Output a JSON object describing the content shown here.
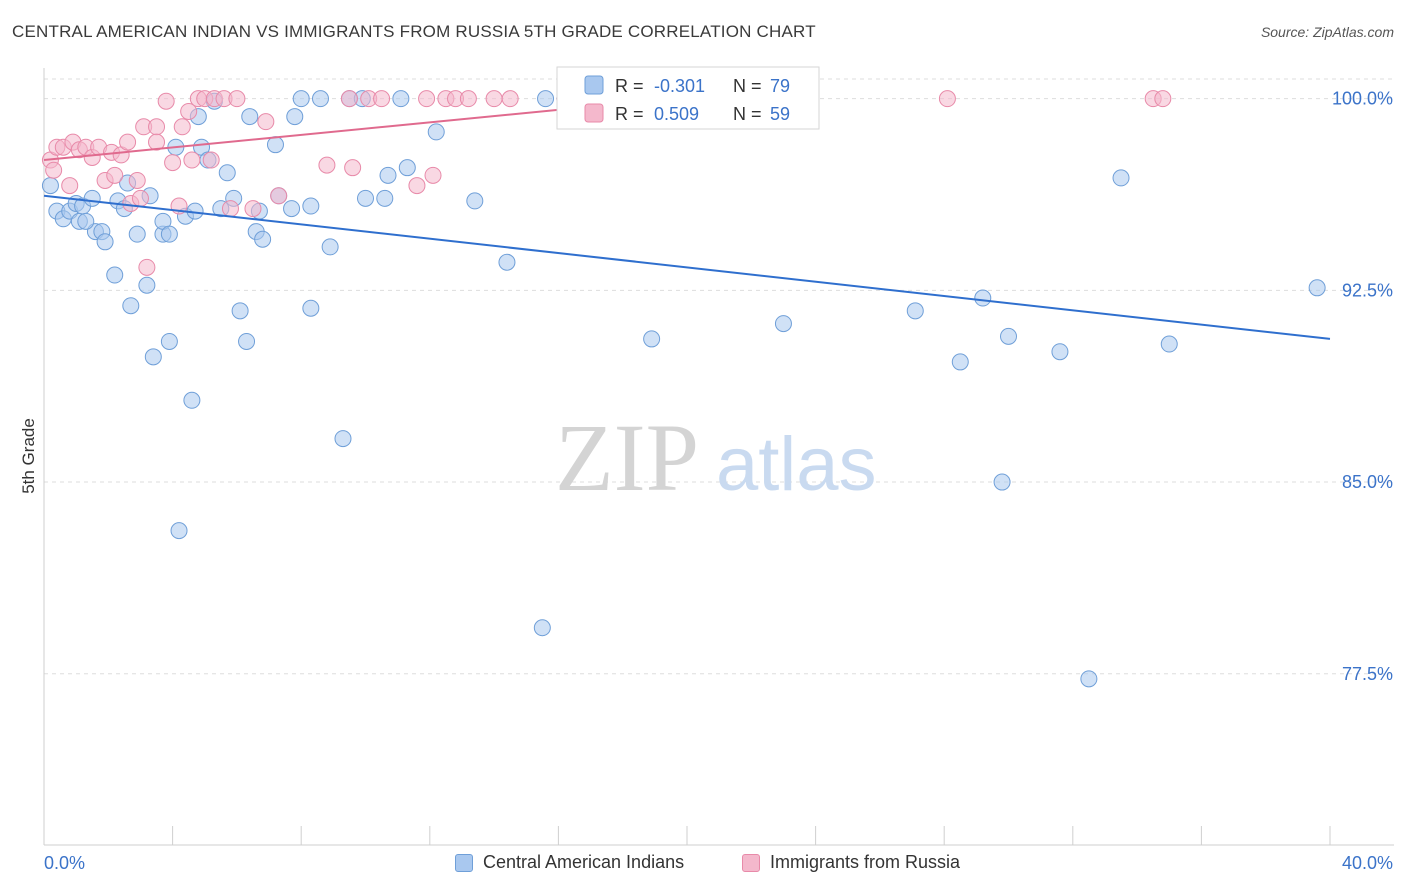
{
  "title": "CENTRAL AMERICAN INDIAN VS IMMIGRANTS FROM RUSSIA 5TH GRADE CORRELATION CHART",
  "source": "Source: ZipAtlas.com",
  "watermark": {
    "zip": "ZIP",
    "atlas": "atlas"
  },
  "legend_box": [
    {
      "r_label": "R =",
      "r_value": "-0.301",
      "n_label": "N =",
      "n_value": "79"
    },
    {
      "r_label": "R =",
      "r_value": "0.509",
      "n_label": "N =",
      "n_value": "59"
    }
  ],
  "colors": {
    "blue_fill": "#a9c8ef",
    "blue_stroke": "#6f9fd8",
    "blue_line": "#2f6fce",
    "pink_fill": "#f4b8cc",
    "pink_stroke": "#e88aa9",
    "pink_line": "#e06a8e",
    "value_text": "#3b73c9",
    "grid": "#dddddd"
  },
  "chart_data": {
    "type": "scatter",
    "title": "CENTRAL AMERICAN INDIAN VS IMMIGRANTS FROM RUSSIA 5TH GRADE CORRELATION CHART",
    "xlabel": "",
    "ylabel": "5th Grade",
    "xlim": [
      0,
      40
    ],
    "ylim": [
      70.8,
      101.2
    ],
    "x_tick_labels": [
      "0.0%",
      "40.0%"
    ],
    "y_tick_values": [
      77.5,
      85.0,
      92.5,
      100.0
    ],
    "y_tick_labels": [
      "77.5%",
      "85.0%",
      "92.5%",
      "100.0%"
    ],
    "grid": true,
    "legend_position": "bottom",
    "series": [
      {
        "name": "Central American Indians",
        "r": -0.301,
        "n": 79,
        "trend": [
          [
            0,
            96.2
          ],
          [
            40,
            90.6
          ]
        ],
        "points": [
          [
            0.2,
            96.6
          ],
          [
            0.4,
            95.6
          ],
          [
            0.6,
            95.3
          ],
          [
            0.8,
            95.6
          ],
          [
            1.0,
            95.9
          ],
          [
            1.1,
            95.2
          ],
          [
            1.2,
            95.8
          ],
          [
            1.5,
            96.1
          ],
          [
            1.6,
            94.8
          ],
          [
            1.8,
            94.8
          ],
          [
            1.9,
            94.4
          ],
          [
            2.2,
            93.1
          ],
          [
            2.3,
            96.0
          ],
          [
            2.5,
            95.7
          ],
          [
            2.6,
            96.7
          ],
          [
            2.9,
            94.7
          ],
          [
            3.2,
            92.7
          ],
          [
            3.3,
            96.2
          ],
          [
            3.4,
            89.9
          ],
          [
            3.7,
            94.7
          ],
          [
            3.7,
            95.2
          ],
          [
            3.9,
            90.5
          ],
          [
            4.1,
            98.1
          ],
          [
            4.2,
            83.1
          ],
          [
            4.4,
            95.4
          ],
          [
            4.6,
            88.2
          ],
          [
            4.8,
            99.3
          ],
          [
            4.9,
            98.1
          ],
          [
            5.1,
            97.6
          ],
          [
            5.3,
            99.9
          ],
          [
            5.5,
            95.7
          ],
          [
            5.7,
            97.1
          ],
          [
            5.9,
            96.1
          ],
          [
            6.1,
            91.7
          ],
          [
            6.3,
            90.5
          ],
          [
            6.4,
            99.3
          ],
          [
            6.6,
            94.8
          ],
          [
            6.8,
            94.5
          ],
          [
            7.2,
            98.2
          ],
          [
            7.3,
            96.2
          ],
          [
            7.7,
            95.7
          ],
          [
            7.8,
            99.3
          ],
          [
            8.0,
            100.0
          ],
          [
            8.3,
            91.8
          ],
          [
            8.6,
            100.0
          ],
          [
            8.9,
            94.2
          ],
          [
            9.3,
            86.7
          ],
          [
            9.5,
            100.0
          ],
          [
            9.9,
            100.0
          ],
          [
            10.0,
            96.1
          ],
          [
            10.6,
            96.1
          ],
          [
            10.7,
            97.0
          ],
          [
            11.1,
            100.0
          ],
          [
            11.3,
            97.3
          ],
          [
            12.2,
            98.7
          ],
          [
            13.4,
            96.0
          ],
          [
            14.4,
            93.6
          ],
          [
            15.5,
            79.3
          ],
          [
            15.6,
            100.0
          ],
          [
            16.2,
            100.0
          ],
          [
            17.8,
            100.0
          ],
          [
            18.9,
            90.6
          ],
          [
            23.0,
            91.2
          ],
          [
            27.1,
            91.7
          ],
          [
            28.5,
            89.7
          ],
          [
            29.2,
            92.2
          ],
          [
            29.8,
            85.0
          ],
          [
            30.0,
            90.7
          ],
          [
            31.6,
            90.1
          ],
          [
            32.5,
            77.3
          ],
          [
            33.5,
            96.9
          ],
          [
            35.0,
            90.4
          ],
          [
            39.6,
            92.6
          ],
          [
            1.3,
            95.2
          ],
          [
            2.7,
            91.9
          ],
          [
            3.9,
            94.7
          ],
          [
            6.7,
            95.6
          ],
          [
            4.7,
            95.6
          ],
          [
            8.3,
            95.8
          ]
        ]
      },
      {
        "name": "Immigrants from Russia",
        "r": 0.509,
        "n": 59,
        "trend": [
          [
            0,
            97.6
          ],
          [
            22,
            100.3
          ]
        ],
        "points": [
          [
            0.2,
            97.6
          ],
          [
            0.3,
            97.2
          ],
          [
            0.4,
            98.1
          ],
          [
            0.6,
            98.1
          ],
          [
            0.8,
            96.6
          ],
          [
            0.9,
            98.3
          ],
          [
            1.1,
            98.0
          ],
          [
            1.3,
            98.1
          ],
          [
            1.5,
            97.7
          ],
          [
            1.7,
            98.1
          ],
          [
            1.9,
            96.8
          ],
          [
            2.1,
            97.9
          ],
          [
            2.2,
            97.0
          ],
          [
            2.4,
            97.8
          ],
          [
            2.6,
            98.3
          ],
          [
            2.7,
            95.9
          ],
          [
            2.9,
            96.8
          ],
          [
            3.0,
            96.1
          ],
          [
            3.1,
            98.9
          ],
          [
            3.2,
            93.4
          ],
          [
            3.5,
            98.9
          ],
          [
            3.5,
            98.3
          ],
          [
            3.8,
            99.9
          ],
          [
            4.0,
            97.5
          ],
          [
            4.2,
            95.8
          ],
          [
            4.3,
            98.9
          ],
          [
            4.5,
            99.5
          ],
          [
            4.6,
            97.6
          ],
          [
            4.8,
            100.0
          ],
          [
            5.0,
            100.0
          ],
          [
            5.2,
            97.6
          ],
          [
            5.3,
            100.0
          ],
          [
            5.6,
            100.0
          ],
          [
            5.8,
            95.7
          ],
          [
            6.0,
            100.0
          ],
          [
            6.5,
            95.7
          ],
          [
            6.9,
            99.1
          ],
          [
            7.3,
            96.2
          ],
          [
            8.8,
            97.4
          ],
          [
            9.5,
            100.0
          ],
          [
            9.6,
            97.3
          ],
          [
            10.1,
            100.0
          ],
          [
            10.5,
            100.0
          ],
          [
            11.6,
            96.6
          ],
          [
            11.9,
            100.0
          ],
          [
            12.1,
            97.0
          ],
          [
            12.5,
            100.0
          ],
          [
            12.8,
            100.0
          ],
          [
            13.2,
            100.0
          ],
          [
            14.0,
            100.0
          ],
          [
            14.5,
            100.0
          ],
          [
            16.2,
            100.0
          ],
          [
            17.0,
            100.0
          ],
          [
            18.5,
            100.0
          ],
          [
            20.0,
            100.0
          ],
          [
            22.7,
            100.0
          ],
          [
            28.1,
            100.0
          ],
          [
            34.5,
            100.0
          ],
          [
            34.8,
            100.0
          ]
        ]
      }
    ]
  }
}
